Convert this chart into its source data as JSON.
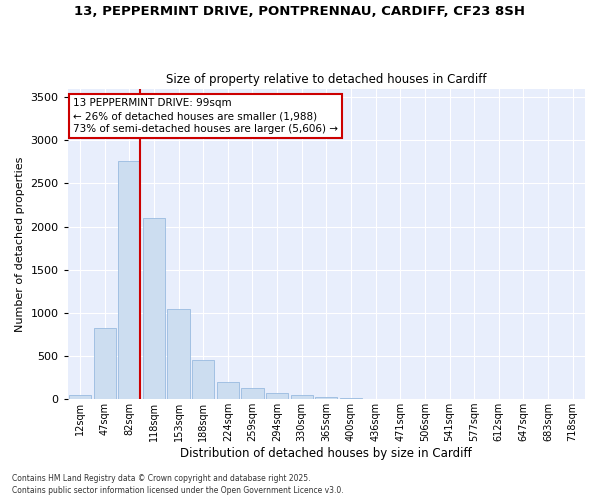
{
  "title_line1": "13, PEPPERMINT DRIVE, PONTPRENNAU, CARDIFF, CF23 8SH",
  "title_line2": "Size of property relative to detached houses in Cardiff",
  "xlabel": "Distribution of detached houses by size in Cardiff",
  "ylabel": "Number of detached properties",
  "categories": [
    "12sqm",
    "47sqm",
    "82sqm",
    "118sqm",
    "153sqm",
    "188sqm",
    "224sqm",
    "259sqm",
    "294sqm",
    "330sqm",
    "365sqm",
    "400sqm",
    "436sqm",
    "471sqm",
    "506sqm",
    "541sqm",
    "577sqm",
    "612sqm",
    "647sqm",
    "683sqm",
    "718sqm"
  ],
  "values": [
    50,
    820,
    2760,
    2100,
    1050,
    450,
    200,
    130,
    75,
    50,
    30,
    15,
    5,
    2,
    1,
    0,
    0,
    0,
    0,
    0,
    0
  ],
  "bar_color": "#ccddf0",
  "bar_edge_color": "#99bbe0",
  "vline_color": "#cc0000",
  "annotation_text": "13 PEPPERMINT DRIVE: 99sqm\n← 26% of detached houses are smaller (1,988)\n73% of semi-detached houses are larger (5,606) →",
  "annotation_box_color": "#cc0000",
  "ylim": [
    0,
    3600
  ],
  "yticks": [
    0,
    500,
    1000,
    1500,
    2000,
    2500,
    3000,
    3500
  ],
  "background_color": "#e8eefc",
  "footer_line1": "Contains HM Land Registry data © Crown copyright and database right 2025.",
  "footer_line2": "Contains public sector information licensed under the Open Government Licence v3.0."
}
